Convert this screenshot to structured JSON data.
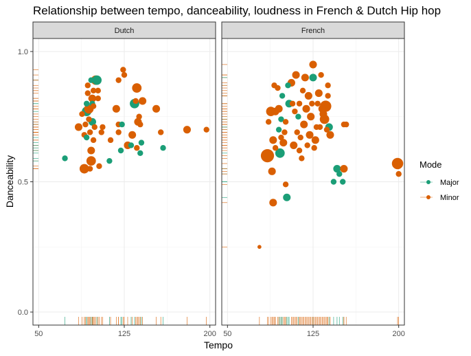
{
  "chart_data": {
    "type": "scatter",
    "title": "Relationship between tempo, danceability, loudness in French & Dutch Hip hop",
    "xlabel": "Tempo",
    "ylabel": "Danceability",
    "xlim": [
      45,
      205
    ],
    "ylim": [
      -0.05,
      1.05
    ],
    "x_ticks": [
      50,
      125,
      200
    ],
    "x_tick_labels": [
      "50",
      "125",
      "200"
    ],
    "y_ticks": [
      0.0,
      0.5,
      1.0
    ],
    "y_tick_labels": [
      "0.0",
      "0.5",
      "1.0"
    ],
    "grid": true,
    "legend": {
      "title": "Mode",
      "position": "right",
      "entries": [
        {
          "label": "Major",
          "color": "#1b9e77"
        },
        {
          "label": "Minor",
          "color": "#d95f02"
        }
      ]
    },
    "colors": {
      "Major": "#1b9e77",
      "Minor": "#d95f02"
    },
    "size_encodes": "loudness",
    "facets": [
      {
        "name": "Dutch",
        "points": [
          {
            "x": 73,
            "y": 0.59,
            "mode": "Major",
            "size": 2
          },
          {
            "x": 85,
            "y": 0.71,
            "mode": "Minor",
            "size": 3
          },
          {
            "x": 88,
            "y": 0.76,
            "mode": "Minor",
            "size": 2
          },
          {
            "x": 90,
            "y": 0.55,
            "mode": "Minor",
            "size": 4
          },
          {
            "x": 90,
            "y": 0.68,
            "mode": "Minor",
            "size": 2
          },
          {
            "x": 91,
            "y": 0.72,
            "mode": "Minor",
            "size": 2
          },
          {
            "x": 92,
            "y": 0.67,
            "mode": "Major",
            "size": 2
          },
          {
            "x": 92,
            "y": 0.77,
            "mode": "Major",
            "size": 4
          },
          {
            "x": 92,
            "y": 0.8,
            "mode": "Major",
            "size": 2
          },
          {
            "x": 93,
            "y": 0.84,
            "mode": "Minor",
            "size": 2
          },
          {
            "x": 93,
            "y": 0.87,
            "mode": "Minor",
            "size": 2
          },
          {
            "x": 94,
            "y": 0.74,
            "mode": "Minor",
            "size": 2
          },
          {
            "x": 94,
            "y": 0.78,
            "mode": "Minor",
            "size": 4
          },
          {
            "x": 95,
            "y": 0.55,
            "mode": "Minor",
            "size": 2
          },
          {
            "x": 95,
            "y": 0.69,
            "mode": "Minor",
            "size": 2
          },
          {
            "x": 96,
            "y": 0.58,
            "mode": "Minor",
            "size": 4
          },
          {
            "x": 96,
            "y": 0.62,
            "mode": "Minor",
            "size": 3
          },
          {
            "x": 96,
            "y": 0.82,
            "mode": "Minor",
            "size": 2
          },
          {
            "x": 96,
            "y": 0.89,
            "mode": "Major",
            "size": 2
          },
          {
            "x": 97,
            "y": 0.73,
            "mode": "Major",
            "size": 3
          },
          {
            "x": 97,
            "y": 0.8,
            "mode": "Major",
            "size": 2
          },
          {
            "x": 97,
            "y": 0.82,
            "mode": "Minor",
            "size": 3
          },
          {
            "x": 98,
            "y": 0.66,
            "mode": "Minor",
            "size": 2
          },
          {
            "x": 98,
            "y": 0.79,
            "mode": "Minor",
            "size": 2
          },
          {
            "x": 98,
            "y": 0.85,
            "mode": "Minor",
            "size": 2
          },
          {
            "x": 99,
            "y": 0.71,
            "mode": "Minor",
            "size": 2
          },
          {
            "x": 100,
            "y": 0.89,
            "mode": "Minor",
            "size": 4
          },
          {
            "x": 101,
            "y": 0.89,
            "mode": "Major",
            "size": 4
          },
          {
            "x": 102,
            "y": 0.82,
            "mode": "Minor",
            "size": 2
          },
          {
            "x": 102,
            "y": 0.85,
            "mode": "Minor",
            "size": 2
          },
          {
            "x": 103,
            "y": 0.56,
            "mode": "Minor",
            "size": 2
          },
          {
            "x": 105,
            "y": 0.69,
            "mode": "Minor",
            "size": 2
          },
          {
            "x": 106,
            "y": 0.71,
            "mode": "Minor",
            "size": 2
          },
          {
            "x": 112,
            "y": 0.58,
            "mode": "Major",
            "size": 2
          },
          {
            "x": 113,
            "y": 0.66,
            "mode": "Minor",
            "size": 2
          },
          {
            "x": 118,
            "y": 0.78,
            "mode": "Minor",
            "size": 3
          },
          {
            "x": 120,
            "y": 0.72,
            "mode": "Minor",
            "size": 2
          },
          {
            "x": 120,
            "y": 0.69,
            "mode": "Minor",
            "size": 2
          },
          {
            "x": 120,
            "y": 0.89,
            "mode": "Minor",
            "size": 2
          },
          {
            "x": 122,
            "y": 0.62,
            "mode": "Major",
            "size": 2
          },
          {
            "x": 123,
            "y": 0.72,
            "mode": "Major",
            "size": 2
          },
          {
            "x": 124,
            "y": 0.93,
            "mode": "Minor",
            "size": 2
          },
          {
            "x": 125,
            "y": 0.91,
            "mode": "Minor",
            "size": 2
          },
          {
            "x": 128,
            "y": 0.64,
            "mode": "Minor",
            "size": 3
          },
          {
            "x": 131,
            "y": 0.64,
            "mode": "Major",
            "size": 2
          },
          {
            "x": 132,
            "y": 0.68,
            "mode": "Minor",
            "size": 3
          },
          {
            "x": 134,
            "y": 0.8,
            "mode": "Major",
            "size": 4
          },
          {
            "x": 135,
            "y": 0.81,
            "mode": "Minor",
            "size": 2
          },
          {
            "x": 136,
            "y": 0.86,
            "mode": "Minor",
            "size": 4
          },
          {
            "x": 136,
            "y": 0.63,
            "mode": "Minor",
            "size": 2
          },
          {
            "x": 137,
            "y": 0.73,
            "mode": "Minor",
            "size": 3
          },
          {
            "x": 138,
            "y": 0.75,
            "mode": "Minor",
            "size": 2
          },
          {
            "x": 139,
            "y": 0.61,
            "mode": "Major",
            "size": 2
          },
          {
            "x": 139,
            "y": 0.72,
            "mode": "Minor",
            "size": 2
          },
          {
            "x": 140,
            "y": 0.65,
            "mode": "Major",
            "size": 2
          },
          {
            "x": 141,
            "y": 0.81,
            "mode": "Minor",
            "size": 3
          },
          {
            "x": 153,
            "y": 0.78,
            "mode": "Minor",
            "size": 3
          },
          {
            "x": 157,
            "y": 0.69,
            "mode": "Minor",
            "size": 2
          },
          {
            "x": 159,
            "y": 0.63,
            "mode": "Major",
            "size": 2
          },
          {
            "x": 180,
            "y": 0.7,
            "mode": "Minor",
            "size": 3
          },
          {
            "x": 197,
            "y": 0.7,
            "mode": "Minor",
            "size": 2
          }
        ]
      },
      {
        "name": "French",
        "points": [
          {
            "x": 78,
            "y": 0.25,
            "mode": "Minor",
            "size": 1
          },
          {
            "x": 85,
            "y": 0.6,
            "mode": "Minor",
            "size": 6
          },
          {
            "x": 86,
            "y": 0.73,
            "mode": "Minor",
            "size": 2
          },
          {
            "x": 88,
            "y": 0.77,
            "mode": "Minor",
            "size": 4
          },
          {
            "x": 89,
            "y": 0.54,
            "mode": "Minor",
            "size": 3
          },
          {
            "x": 90,
            "y": 0.42,
            "mode": "Minor",
            "size": 3
          },
          {
            "x": 90,
            "y": 0.66,
            "mode": "Minor",
            "size": 3
          },
          {
            "x": 91,
            "y": 0.87,
            "mode": "Minor",
            "size": 2
          },
          {
            "x": 92,
            "y": 0.63,
            "mode": "Minor",
            "size": 2
          },
          {
            "x": 92,
            "y": 0.77,
            "mode": "Minor",
            "size": 3
          },
          {
            "x": 94,
            "y": 0.86,
            "mode": "Minor",
            "size": 2
          },
          {
            "x": 95,
            "y": 0.7,
            "mode": "Major",
            "size": 2
          },
          {
            "x": 95,
            "y": 0.78,
            "mode": "Minor",
            "size": 3
          },
          {
            "x": 96,
            "y": 0.61,
            "mode": "Major",
            "size": 4
          },
          {
            "x": 97,
            "y": 0.67,
            "mode": "Minor",
            "size": 2
          },
          {
            "x": 97,
            "y": 0.74,
            "mode": "Major",
            "size": 2
          },
          {
            "x": 98,
            "y": 0.83,
            "mode": "Major",
            "size": 2
          },
          {
            "x": 99,
            "y": 0.65,
            "mode": "Minor",
            "size": 3
          },
          {
            "x": 100,
            "y": 0.69,
            "mode": "Minor",
            "size": 2
          },
          {
            "x": 101,
            "y": 0.73,
            "mode": "Minor",
            "size": 2
          },
          {
            "x": 101,
            "y": 0.49,
            "mode": "Minor",
            "size": 2
          },
          {
            "x": 102,
            "y": 0.44,
            "mode": "Major",
            "size": 3
          },
          {
            "x": 103,
            "y": 0.87,
            "mode": "Major",
            "size": 2
          },
          {
            "x": 104,
            "y": 0.8,
            "mode": "Major",
            "size": 3
          },
          {
            "x": 106,
            "y": 0.88,
            "mode": "Minor",
            "size": 3
          },
          {
            "x": 107,
            "y": 0.8,
            "mode": "Minor",
            "size": 2
          },
          {
            "x": 108,
            "y": 0.64,
            "mode": "Minor",
            "size": 3
          },
          {
            "x": 109,
            "y": 0.77,
            "mode": "Minor",
            "size": 2
          },
          {
            "x": 110,
            "y": 0.91,
            "mode": "Minor",
            "size": 3
          },
          {
            "x": 111,
            "y": 0.69,
            "mode": "Minor",
            "size": 2
          },
          {
            "x": 112,
            "y": 0.75,
            "mode": "Major",
            "size": 2
          },
          {
            "x": 113,
            "y": 0.8,
            "mode": "Minor",
            "size": 2
          },
          {
            "x": 113,
            "y": 0.62,
            "mode": "Minor",
            "size": 2
          },
          {
            "x": 114,
            "y": 0.67,
            "mode": "Minor",
            "size": 2
          },
          {
            "x": 115,
            "y": 0.59,
            "mode": "Minor",
            "size": 2
          },
          {
            "x": 116,
            "y": 0.85,
            "mode": "Minor",
            "size": 2
          },
          {
            "x": 117,
            "y": 0.72,
            "mode": "Minor",
            "size": 3
          },
          {
            "x": 118,
            "y": 0.9,
            "mode": "Minor",
            "size": 3
          },
          {
            "x": 119,
            "y": 0.78,
            "mode": "Minor",
            "size": 3
          },
          {
            "x": 120,
            "y": 0.64,
            "mode": "Minor",
            "size": 2
          },
          {
            "x": 121,
            "y": 0.83,
            "mode": "Minor",
            "size": 3
          },
          {
            "x": 122,
            "y": 0.68,
            "mode": "Minor",
            "size": 3
          },
          {
            "x": 123,
            "y": 0.75,
            "mode": "Minor",
            "size": 3
          },
          {
            "x": 124,
            "y": 0.8,
            "mode": "Minor",
            "size": 2
          },
          {
            "x": 125,
            "y": 0.9,
            "mode": "Major",
            "size": 3
          },
          {
            "x": 125,
            "y": 0.95,
            "mode": "Minor",
            "size": 3
          },
          {
            "x": 126,
            "y": 0.63,
            "mode": "Minor",
            "size": 2
          },
          {
            "x": 127,
            "y": 0.66,
            "mode": "Minor",
            "size": 3
          },
          {
            "x": 128,
            "y": 0.71,
            "mode": "Minor",
            "size": 2
          },
          {
            "x": 129,
            "y": 0.8,
            "mode": "Minor",
            "size": 2
          },
          {
            "x": 130,
            "y": 0.84,
            "mode": "Minor",
            "size": 3
          },
          {
            "x": 131,
            "y": 0.71,
            "mode": "Minor",
            "size": 2
          },
          {
            "x": 132,
            "y": 0.91,
            "mode": "Minor",
            "size": 2
          },
          {
            "x": 133,
            "y": 0.78,
            "mode": "Minor",
            "size": 3
          },
          {
            "x": 134,
            "y": 0.76,
            "mode": "Minor",
            "size": 3
          },
          {
            "x": 135,
            "y": 0.74,
            "mode": "Minor",
            "size": 4
          },
          {
            "x": 136,
            "y": 0.79,
            "mode": "Minor",
            "size": 5
          },
          {
            "x": 137,
            "y": 0.7,
            "mode": "Minor",
            "size": 2
          },
          {
            "x": 138,
            "y": 0.83,
            "mode": "Minor",
            "size": 2
          },
          {
            "x": 138,
            "y": 0.87,
            "mode": "Minor",
            "size": 2
          },
          {
            "x": 139,
            "y": 0.71,
            "mode": "Major",
            "size": 3
          },
          {
            "x": 140,
            "y": 0.68,
            "mode": "Minor",
            "size": 3
          },
          {
            "x": 143,
            "y": 0.5,
            "mode": "Major",
            "size": 2
          },
          {
            "x": 146,
            "y": 0.55,
            "mode": "Major",
            "size": 3
          },
          {
            "x": 148,
            "y": 0.53,
            "mode": "Major",
            "size": 2
          },
          {
            "x": 151,
            "y": 0.5,
            "mode": "Major",
            "size": 2
          },
          {
            "x": 152,
            "y": 0.55,
            "mode": "Minor",
            "size": 3
          },
          {
            "x": 152,
            "y": 0.72,
            "mode": "Minor",
            "size": 2
          },
          {
            "x": 154,
            "y": 0.72,
            "mode": "Minor",
            "size": 2
          },
          {
            "x": 199,
            "y": 0.57,
            "mode": "Minor",
            "size": 5
          },
          {
            "x": 200,
            "y": 0.53,
            "mode": "Minor",
            "size": 2
          }
        ]
      }
    ]
  }
}
